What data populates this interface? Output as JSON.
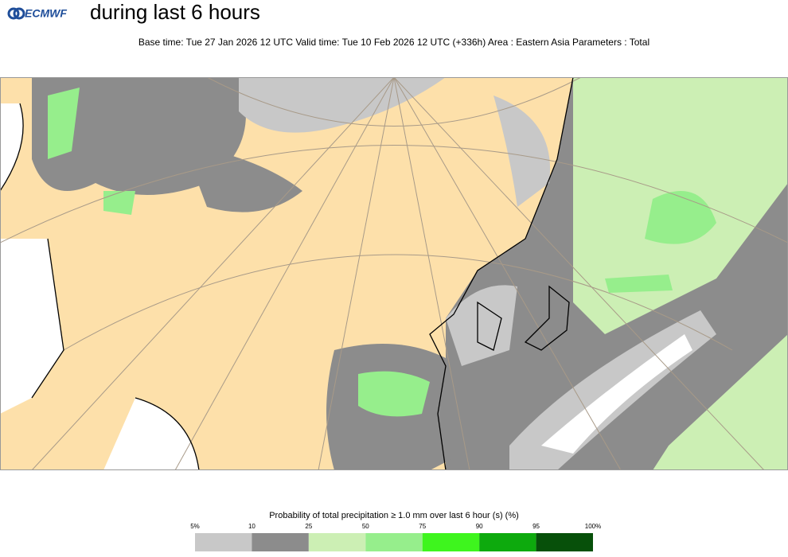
{
  "header": {
    "logo": "ECMWF",
    "title": "during last 6 hours",
    "subtitle": "Base time: Tue 27 Jan 2026 12 UTC Valid time: Tue 10 Feb 2026 12 UTC (+336h) Area : Eastern Asia Parameters : Total"
  },
  "legend": {
    "title": "Probability of total precipitation ≥ 1.0 mm over last 6 hour (s) (%)",
    "ticks": [
      "5%",
      "10",
      "25",
      "50",
      "75",
      "90",
      "95",
      "100%"
    ],
    "colors": [
      "#c8c8c8",
      "#8c8c8c",
      "#ccefb4",
      "#96ee8c",
      "#3ef51e",
      "#0daa0d",
      "#07500a"
    ]
  }
}
